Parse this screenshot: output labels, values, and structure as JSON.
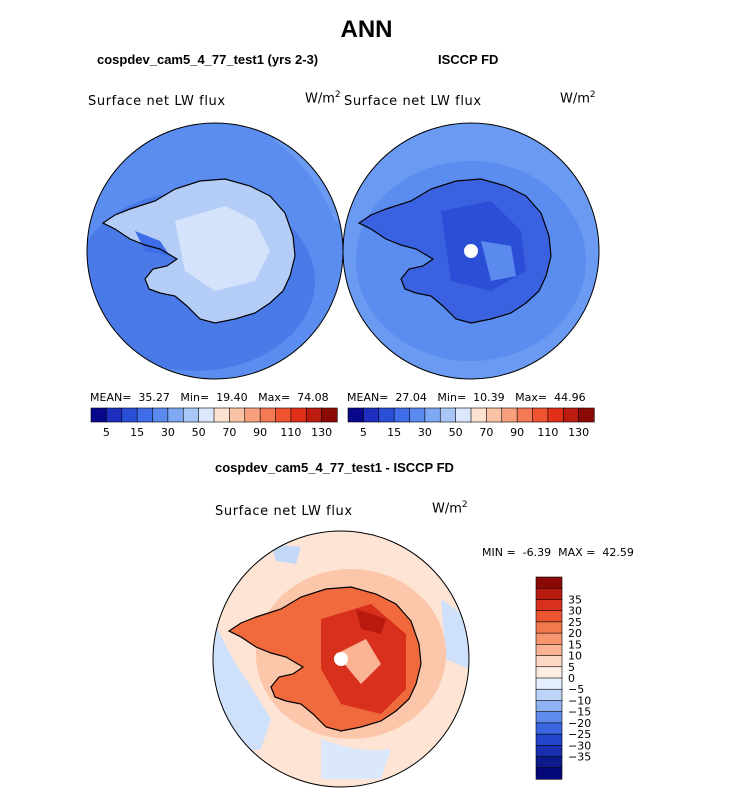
{
  "title": "ANN",
  "panel_left": {
    "title": "cospdev_cam5_4_77_test1 (yrs 2-3)",
    "variable": "Surface net LW flux",
    "units_base": "W/m",
    "units_exp": "2",
    "mean_label": "MEAN=",
    "mean": "35.27",
    "min_label": "Min=",
    "min": "19.40",
    "max_label": "Max=",
    "max": "74.08"
  },
  "panel_right": {
    "title": "ISCCP FD",
    "variable": "Surface net LW flux",
    "units_base": "W/m",
    "units_exp": "2",
    "mean_label": "MEAN=",
    "mean": "27.04",
    "min_label": "Min=",
    "min": "10.39",
    "max_label": "Max=",
    "max": "44.96"
  },
  "panel_diff": {
    "title": "cospdev_cam5_4_77_test1 - ISCCP FD",
    "variable": "Surface net LW flux",
    "units_base": "W/m",
    "units_exp": "2",
    "min_label": "MIN =",
    "min": "-6.39",
    "max_label": "MAX =",
    "max": "42.59"
  },
  "colorbar_horizontal": {
    "colors": [
      "#08088c",
      "#1e2ebe",
      "#2a4ed6",
      "#3f6ce8",
      "#5a8aee",
      "#7fa8f2",
      "#a8c6f6",
      "#dbe8fb",
      "#fde2d2",
      "#fbc3a6",
      "#f8a07e",
      "#f47a55",
      "#ef5330",
      "#e0301a",
      "#bc1c10",
      "#8c0a06"
    ],
    "tick_labels": [
      "5",
      "15",
      "30",
      "50",
      "70",
      "90",
      "110",
      "130"
    ]
  },
  "colorbar_vertical": {
    "colors": [
      "#8c0a06",
      "#b81a10",
      "#d8301c",
      "#eb5532",
      "#f2784e",
      "#f7966e",
      "#fab494",
      "#fdd8c4",
      "#fdeee4",
      "#e4eefc",
      "#bcd4f8",
      "#8fb2f2",
      "#5f8cec",
      "#3a66e2",
      "#2245cc",
      "#1830b0",
      "#0c1a8c",
      "#04087a"
    ],
    "tick_labels": [
      "35",
      "30",
      "25",
      "20",
      "15",
      "10",
      "5",
      "0",
      "-5",
      "-10",
      "-15",
      "-20",
      "-25",
      "-30",
      "-35"
    ]
  }
}
